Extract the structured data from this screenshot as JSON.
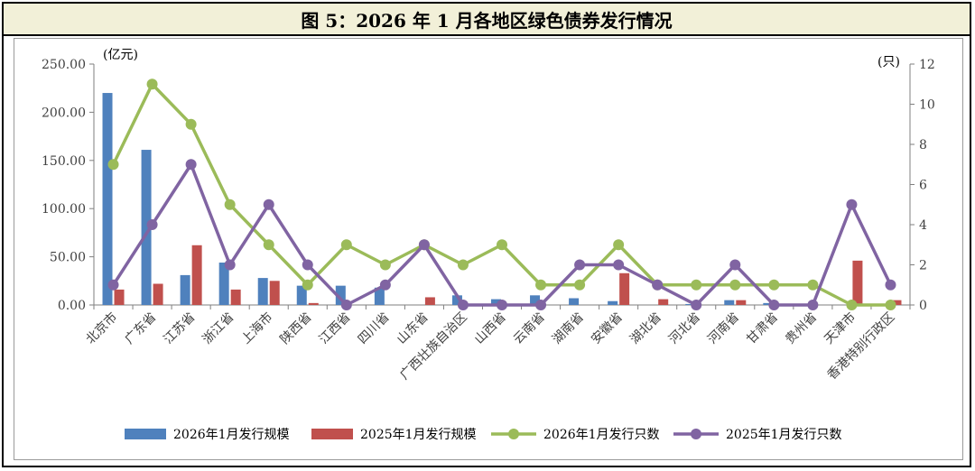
{
  "title": "图 5：2026 年 1 月各地区绿色债券发行情况",
  "chart_data": {
    "type": "bar+line",
    "categories": [
      "北京市",
      "广东省",
      "江苏省",
      "浙江省",
      "上海市",
      "陕西省",
      "江西省",
      "四川省",
      "山东省",
      "广西壮族自治区",
      "山西省",
      "云南省",
      "湖南省",
      "安徽省",
      "湖北省",
      "河北省",
      "河南省",
      "甘肃省",
      "贵州省",
      "天津市",
      "香港特别行政区"
    ],
    "bars": [
      {
        "name": "2026年1月发行规模",
        "color": "#4f81bd",
        "values": [
          220,
          161,
          31,
          44,
          28,
          20,
          20,
          18,
          0,
          10,
          6,
          10,
          7,
          4,
          0,
          1,
          5,
          2,
          0,
          0,
          0
        ]
      },
      {
        "name": "2025年1月发行规模",
        "color": "#c0504d",
        "values": [
          16,
          22,
          62,
          16,
          25,
          2,
          0,
          0,
          8,
          0,
          0,
          0,
          0,
          33,
          6,
          0,
          5,
          0,
          0,
          46,
          5
        ]
      }
    ],
    "lines": [
      {
        "name": "2026年1月发行只数",
        "color": "#9bbb59",
        "values": [
          7,
          11,
          9,
          5,
          3,
          1,
          3,
          2,
          3,
          2,
          3,
          1,
          1,
          3,
          1,
          1,
          1,
          1,
          1,
          0,
          0
        ]
      },
      {
        "name": "2025年1月发行只数",
        "color": "#8064a2",
        "values": [
          1,
          4,
          7,
          2,
          5,
          2,
          0,
          1,
          3,
          0,
          0,
          0,
          2,
          2,
          1,
          0,
          2,
          0,
          0,
          5,
          1
        ]
      }
    ],
    "y_left": {
      "unit": "(亿元)",
      "min": 0,
      "max": 250,
      "step": 50,
      "tick_labels": [
        "0.00",
        "50.00",
        "100.00",
        "150.00",
        "200.00",
        "250.00"
      ]
    },
    "y_right": {
      "unit": "(只)",
      "min": 0,
      "max": 12,
      "step": 2,
      "tick_labels": [
        "0",
        "2",
        "4",
        "6",
        "8",
        "10",
        "12"
      ]
    },
    "legend_position": "bottom",
    "grid": false
  }
}
